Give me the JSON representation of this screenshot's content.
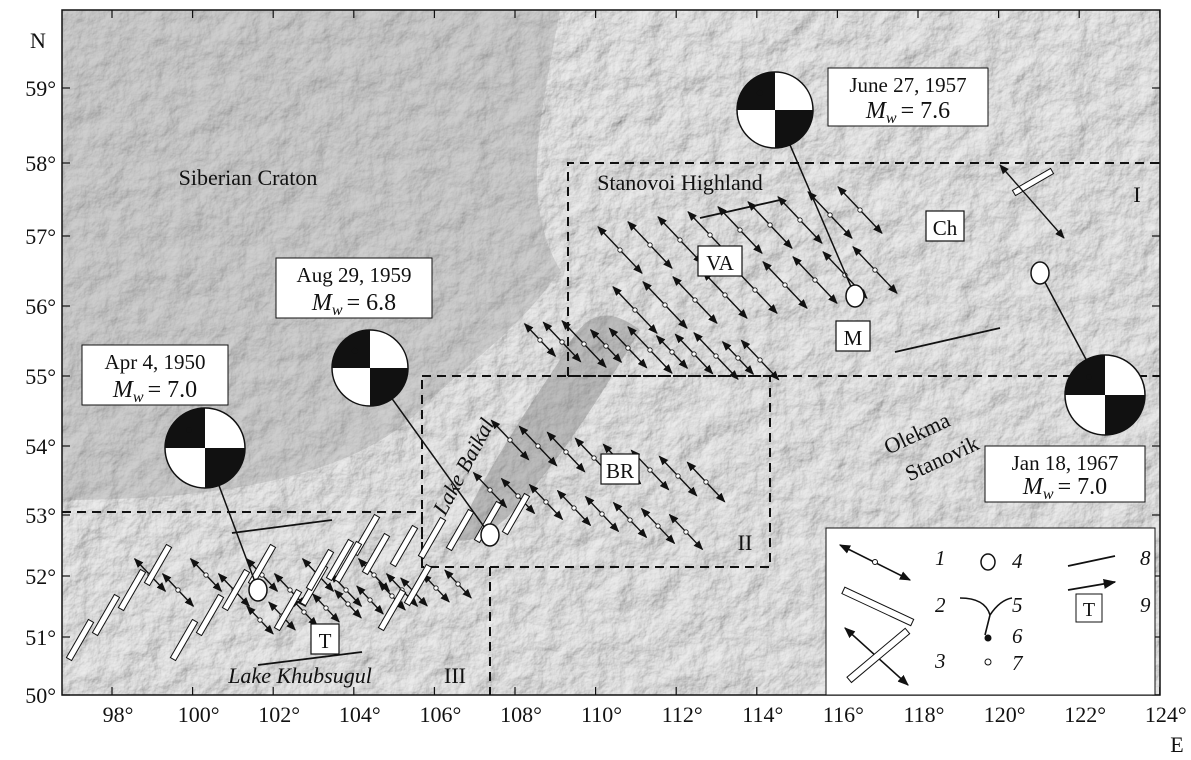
{
  "axes": {
    "lat_title": "N",
    "lon_title": "E",
    "lat_ticks": [
      "50°",
      "51°",
      "52°",
      "53°",
      "54°",
      "55°",
      "56°",
      "57°",
      "58°",
      "59°"
    ],
    "lon_ticks": [
      "98°",
      "100°",
      "102°",
      "104°",
      "106°",
      "108°",
      "110°",
      "112°",
      "114°",
      "116°",
      "118°",
      "120°",
      "122°",
      "124°"
    ]
  },
  "places": [
    "Siberian Craton",
    "Stanovoi Highland",
    "Lake Baikal",
    "Lake Khubsugul",
    "Olekma",
    "Stanovik"
  ],
  "regions": [
    "I",
    "II",
    "III"
  ],
  "markers": [
    "VA",
    "Ch",
    "M",
    "BR",
    "T"
  ],
  "events": [
    {
      "date": "Apr 4, 1950",
      "symbol": "M",
      "subscript": "w",
      "value": "= 7.0"
    },
    {
      "date": "Aug 29, 1959",
      "symbol": "M",
      "subscript": "w",
      "value": "= 6.8"
    },
    {
      "date": "June 27, 1957",
      "symbol": "M",
      "subscript": "w",
      "value": "= 7.6"
    },
    {
      "date": "Jan 18, 1967",
      "symbol": "M",
      "subscript": "w",
      "value": "= 7.0"
    }
  ],
  "legend": {
    "items": [
      "1",
      "2",
      "3",
      "4",
      "5",
      "6",
      "7",
      "8",
      "9"
    ],
    "box_label": "T"
  }
}
